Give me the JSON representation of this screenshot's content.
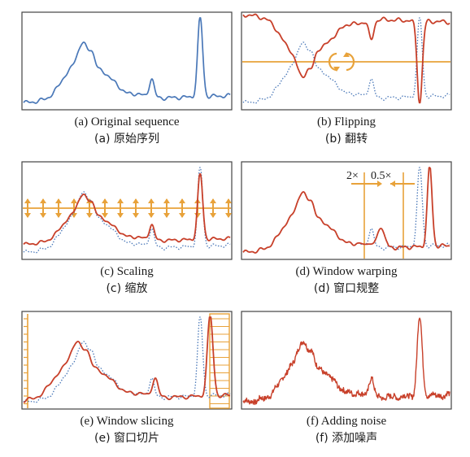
{
  "panels": [
    {
      "id": "a",
      "caption_en": "(a) Original sequence",
      "caption_zh": "(a) 原始序列",
      "lines": [
        "orig-blue"
      ]
    },
    {
      "id": "b",
      "caption_en": "(b) Flipping",
      "caption_zh": "(b) 翻转",
      "lines": [
        "orig-dotted",
        "flip-red"
      ]
    },
    {
      "id": "c",
      "caption_en": "(c) Scaling",
      "caption_zh": "(c) 缩放",
      "lines": [
        "orig-dotted",
        "scale-red"
      ]
    },
    {
      "id": "d",
      "caption_en": "(d) Window warping",
      "caption_zh": "(d) 窗口规整",
      "lines": [
        "orig-dotted",
        "warp-red"
      ],
      "annotations": {
        "left": "2×",
        "right": "0.5×"
      }
    },
    {
      "id": "e",
      "caption_en": "(e) Window slicing",
      "caption_zh": "(e) 窗口切片",
      "lines": [
        "orig-dotted",
        "slice-red"
      ]
    },
    {
      "id": "f",
      "caption_en": "(f) Adding noise",
      "caption_zh": "(f) 添加噪声",
      "lines": [
        "noise-red"
      ]
    }
  ],
  "colors": {
    "original": "#4a78b8",
    "augmented": "#c8402a",
    "guide": "#e8a23a",
    "frame": "#444444"
  }
}
